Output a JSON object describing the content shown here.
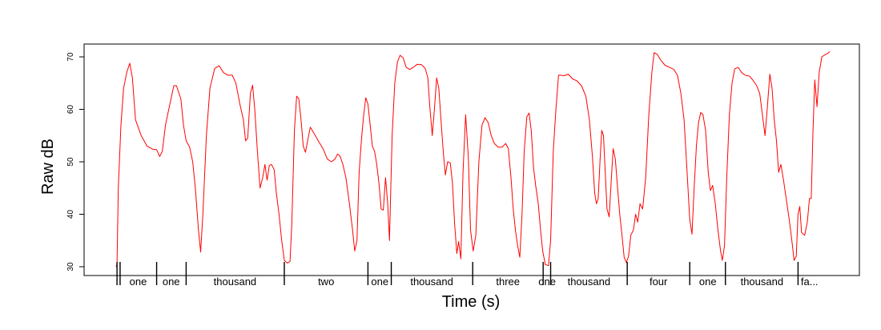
{
  "chart_data": {
    "type": "line",
    "title": "",
    "xlabel": "Time (s)",
    "ylabel": "Raw dB",
    "ylim": [
      29.5,
      72
    ],
    "yticks": [
      30,
      40,
      50,
      60,
      70
    ],
    "grid": false,
    "series": [
      {
        "color": "#ff0000",
        "points": [
          [
            0.03,
            30
          ],
          [
            0.05,
            30.5
          ],
          [
            0.08,
            45
          ],
          [
            0.14,
            57
          ],
          [
            0.2,
            64
          ],
          [
            0.27,
            67
          ],
          [
            0.34,
            68.8
          ],
          [
            0.4,
            66
          ],
          [
            0.47,
            58
          ],
          [
            0.6,
            55
          ],
          [
            0.73,
            53
          ],
          [
            0.86,
            52.4
          ],
          [
            0.95,
            52.3
          ],
          [
            1.02,
            51
          ],
          [
            1.08,
            52
          ],
          [
            1.15,
            57
          ],
          [
            1.25,
            61
          ],
          [
            1.34,
            64.5
          ],
          [
            1.4,
            64.5
          ],
          [
            1.5,
            62
          ],
          [
            1.56,
            57
          ],
          [
            1.62,
            54
          ],
          [
            1.7,
            52.8
          ],
          [
            1.77,
            50
          ],
          [
            1.83,
            45
          ],
          [
            1.9,
            37
          ],
          [
            1.95,
            32.8
          ],
          [
            2.0,
            40
          ],
          [
            2.08,
            55
          ],
          [
            2.16,
            64
          ],
          [
            2.27,
            67.8
          ],
          [
            2.37,
            68.3
          ],
          [
            2.47,
            67
          ],
          [
            2.57,
            66.5
          ],
          [
            2.67,
            66.5
          ],
          [
            2.75,
            65
          ],
          [
            2.84,
            61
          ],
          [
            2.92,
            58
          ],
          [
            2.97,
            54
          ],
          [
            3.02,
            54.5
          ],
          [
            3.08,
            63
          ],
          [
            3.13,
            64.6
          ],
          [
            3.18,
            60
          ],
          [
            3.24,
            52
          ],
          [
            3.3,
            45
          ],
          [
            3.36,
            47
          ],
          [
            3.41,
            49.5
          ],
          [
            3.46,
            46.5
          ],
          [
            3.51,
            49.3
          ],
          [
            3.56,
            49.5
          ],
          [
            3.62,
            48.5
          ],
          [
            3.67,
            44
          ],
          [
            3.73,
            40
          ],
          [
            3.79,
            35
          ],
          [
            3.85,
            31.2
          ],
          [
            3.92,
            30.7
          ],
          [
            3.98,
            31
          ],
          [
            4.02,
            38
          ],
          [
            4.08,
            56
          ],
          [
            4.13,
            62.5
          ],
          [
            4.18,
            62
          ],
          [
            4.23,
            58
          ],
          [
            4.28,
            53
          ],
          [
            4.33,
            51.8
          ],
          [
            4.38,
            54
          ],
          [
            4.44,
            56.6
          ],
          [
            4.52,
            55.5
          ],
          [
            4.62,
            54
          ],
          [
            4.73,
            52.5
          ],
          [
            4.83,
            50.5
          ],
          [
            4.92,
            50
          ],
          [
            5.0,
            50.5
          ],
          [
            5.06,
            51.5
          ],
          [
            5.12,
            51
          ],
          [
            5.18,
            49.5
          ],
          [
            5.25,
            47
          ],
          [
            5.33,
            42
          ],
          [
            5.4,
            37
          ],
          [
            5.45,
            33
          ],
          [
            5.5,
            35
          ],
          [
            5.55,
            48
          ],
          [
            5.6,
            54
          ],
          [
            5.65,
            58.7
          ],
          [
            5.7,
            62.2
          ],
          [
            5.75,
            61
          ],
          [
            5.8,
            57
          ],
          [
            5.85,
            53
          ],
          [
            5.9,
            52
          ],
          [
            5.95,
            49.5
          ],
          [
            6.0,
            46
          ],
          [
            6.05,
            41
          ],
          [
            6.1,
            40.8
          ],
          [
            6.15,
            47
          ],
          [
            6.2,
            42
          ],
          [
            6.24,
            35
          ],
          [
            6.3,
            55
          ],
          [
            6.36,
            65
          ],
          [
            6.42,
            69
          ],
          [
            6.48,
            70.3
          ],
          [
            6.55,
            69.8
          ],
          [
            6.62,
            68
          ],
          [
            6.7,
            67.6
          ],
          [
            6.78,
            68
          ],
          [
            6.87,
            68.6
          ],
          [
            6.97,
            68.5
          ],
          [
            7.05,
            67.8
          ],
          [
            7.11,
            66
          ],
          [
            7.15,
            61
          ],
          [
            7.21,
            55
          ],
          [
            7.26,
            60
          ],
          [
            7.31,
            66
          ],
          [
            7.36,
            64
          ],
          [
            7.41,
            58
          ],
          [
            7.46,
            52
          ],
          [
            7.51,
            47.5
          ],
          [
            7.56,
            50
          ],
          [
            7.62,
            49.8
          ],
          [
            7.67,
            46
          ],
          [
            7.72,
            38
          ],
          [
            7.77,
            32.5
          ],
          [
            7.81,
            34.8
          ],
          [
            7.86,
            31.5
          ],
          [
            7.91,
            48
          ],
          [
            7.97,
            59
          ],
          [
            8.03,
            51
          ],
          [
            8.08,
            37
          ],
          [
            8.14,
            33
          ],
          [
            8.2,
            36
          ],
          [
            8.27,
            50
          ],
          [
            8.34,
            57
          ],
          [
            8.41,
            58.4
          ],
          [
            8.48,
            57.5
          ],
          [
            8.55,
            55
          ],
          [
            8.62,
            53.5
          ],
          [
            8.71,
            52.8
          ],
          [
            8.8,
            52.8
          ],
          [
            8.88,
            53.5
          ],
          [
            8.94,
            52.5
          ],
          [
            9.0,
            47
          ],
          [
            9.05,
            41
          ],
          [
            9.1,
            37
          ],
          [
            9.15,
            34
          ],
          [
            9.2,
            31.8
          ],
          [
            9.25,
            40
          ],
          [
            9.3,
            52
          ],
          [
            9.36,
            58.6
          ],
          [
            9.41,
            59.3
          ],
          [
            9.46,
            56
          ],
          [
            9.51,
            49
          ],
          [
            9.56,
            45.5
          ],
          [
            9.62,
            42
          ],
          [
            9.67,
            37
          ],
          [
            9.72,
            33
          ],
          [
            9.78,
            30.4
          ],
          [
            9.85,
            30.2
          ],
          [
            9.9,
            35
          ],
          [
            9.96,
            52
          ],
          [
            10.02,
            60
          ],
          [
            10.08,
            66.5
          ],
          [
            10.14,
            66.5
          ],
          [
            10.2,
            66.4
          ],
          [
            10.3,
            66.7
          ],
          [
            10.4,
            65.8
          ],
          [
            10.5,
            65.4
          ],
          [
            10.6,
            64.5
          ],
          [
            10.7,
            62.5
          ],
          [
            10.78,
            58
          ],
          [
            10.85,
            51
          ],
          [
            10.9,
            44
          ],
          [
            10.94,
            42
          ],
          [
            10.98,
            43
          ],
          [
            11.02,
            50
          ],
          [
            11.06,
            56
          ],
          [
            11.1,
            55
          ],
          [
            11.14,
            48
          ],
          [
            11.18,
            41
          ],
          [
            11.23,
            39.5
          ],
          [
            11.28,
            47
          ],
          [
            11.32,
            52.5
          ],
          [
            11.37,
            50.5
          ],
          [
            11.42,
            45
          ],
          [
            11.47,
            40
          ],
          [
            11.52,
            36
          ],
          [
            11.57,
            31.8
          ],
          [
            11.62,
            30.8
          ],
          [
            11.67,
            32
          ],
          [
            11.72,
            36
          ],
          [
            11.78,
            37
          ],
          [
            11.83,
            40
          ],
          [
            11.88,
            38.5
          ],
          [
            11.93,
            42
          ],
          [
            11.99,
            41
          ],
          [
            12.06,
            47
          ],
          [
            12.13,
            59
          ],
          [
            12.2,
            67
          ],
          [
            12.25,
            70.8
          ],
          [
            12.32,
            70.5
          ],
          [
            12.4,
            69.4
          ],
          [
            12.5,
            68.4
          ],
          [
            12.6,
            68
          ],
          [
            12.7,
            67.6
          ],
          [
            12.78,
            66.5
          ],
          [
            12.86,
            63
          ],
          [
            12.93,
            58
          ],
          [
            13.0,
            48
          ],
          [
            13.06,
            39
          ],
          [
            13.11,
            36.2
          ],
          [
            13.16,
            45
          ],
          [
            13.21,
            53
          ],
          [
            13.26,
            57.5
          ],
          [
            13.31,
            59.4
          ],
          [
            13.36,
            59
          ],
          [
            13.42,
            56
          ],
          [
            13.48,
            48
          ],
          [
            13.53,
            44.5
          ],
          [
            13.58,
            45.5
          ],
          [
            13.64,
            42
          ],
          [
            13.7,
            37
          ],
          [
            13.76,
            33
          ],
          [
            13.8,
            31.2
          ],
          [
            13.85,
            34
          ],
          [
            13.9,
            47
          ],
          [
            13.96,
            59
          ],
          [
            14.02,
            65
          ],
          [
            14.08,
            67.7
          ],
          [
            14.16,
            68
          ],
          [
            14.24,
            67
          ],
          [
            14.32,
            66.5
          ],
          [
            14.42,
            66.3
          ],
          [
            14.5,
            65.5
          ],
          [
            14.58,
            64.5
          ],
          [
            14.65,
            63
          ],
          [
            14.71,
            59
          ],
          [
            14.77,
            55
          ],
          [
            14.82,
            60
          ],
          [
            14.88,
            66.7
          ],
          [
            14.93,
            64
          ],
          [
            14.98,
            58
          ],
          [
            15.03,
            54
          ],
          [
            15.08,
            48
          ],
          [
            15.13,
            49.5
          ],
          [
            15.19,
            46.5
          ],
          [
            15.25,
            43
          ],
          [
            15.32,
            39
          ],
          [
            15.38,
            35
          ],
          [
            15.43,
            31.2
          ],
          [
            15.48,
            32
          ],
          [
            15.52,
            40
          ],
          [
            15.56,
            41.5
          ],
          [
            15.6,
            36.5
          ],
          [
            15.67,
            36
          ],
          [
            15.73,
            38.5
          ],
          [
            15.78,
            43
          ],
          [
            15.82,
            43
          ],
          [
            15.86,
            56
          ],
          [
            15.9,
            65.6
          ],
          [
            15.95,
            60.5
          ],
          [
            16.0,
            67
          ],
          [
            16.06,
            70
          ],
          [
            16.13,
            70.4
          ],
          [
            16.2,
            70.7
          ],
          [
            16.24,
            71
          ]
        ]
      }
    ],
    "segment_marks": [
      0.05,
      0.12,
      0.95,
      1.62,
      3.85,
      5.75,
      6.28,
      8.13,
      9.73,
      9.9,
      11.64,
      13.06,
      13.87,
      15.52
    ],
    "segment_labels": [
      {
        "text": "one",
        "pos": 0.53
      },
      {
        "text": "one",
        "pos": 1.28
      },
      {
        "text": "thousand",
        "pos": 2.73
      },
      {
        "text": "two",
        "pos": 4.8
      },
      {
        "text": "one",
        "pos": 6.02
      },
      {
        "text": "thousand",
        "pos": 7.2
      },
      {
        "text": "three",
        "pos": 8.93
      },
      {
        "text": "one",
        "pos": 9.82
      },
      {
        "text": "thousand",
        "pos": 10.77
      },
      {
        "text": "four",
        "pos": 12.35
      },
      {
        "text": "one",
        "pos": 13.47
      },
      {
        "text": "thousand",
        "pos": 14.7
      },
      {
        "text": "fa...",
        "pos": 15.78
      }
    ]
  }
}
